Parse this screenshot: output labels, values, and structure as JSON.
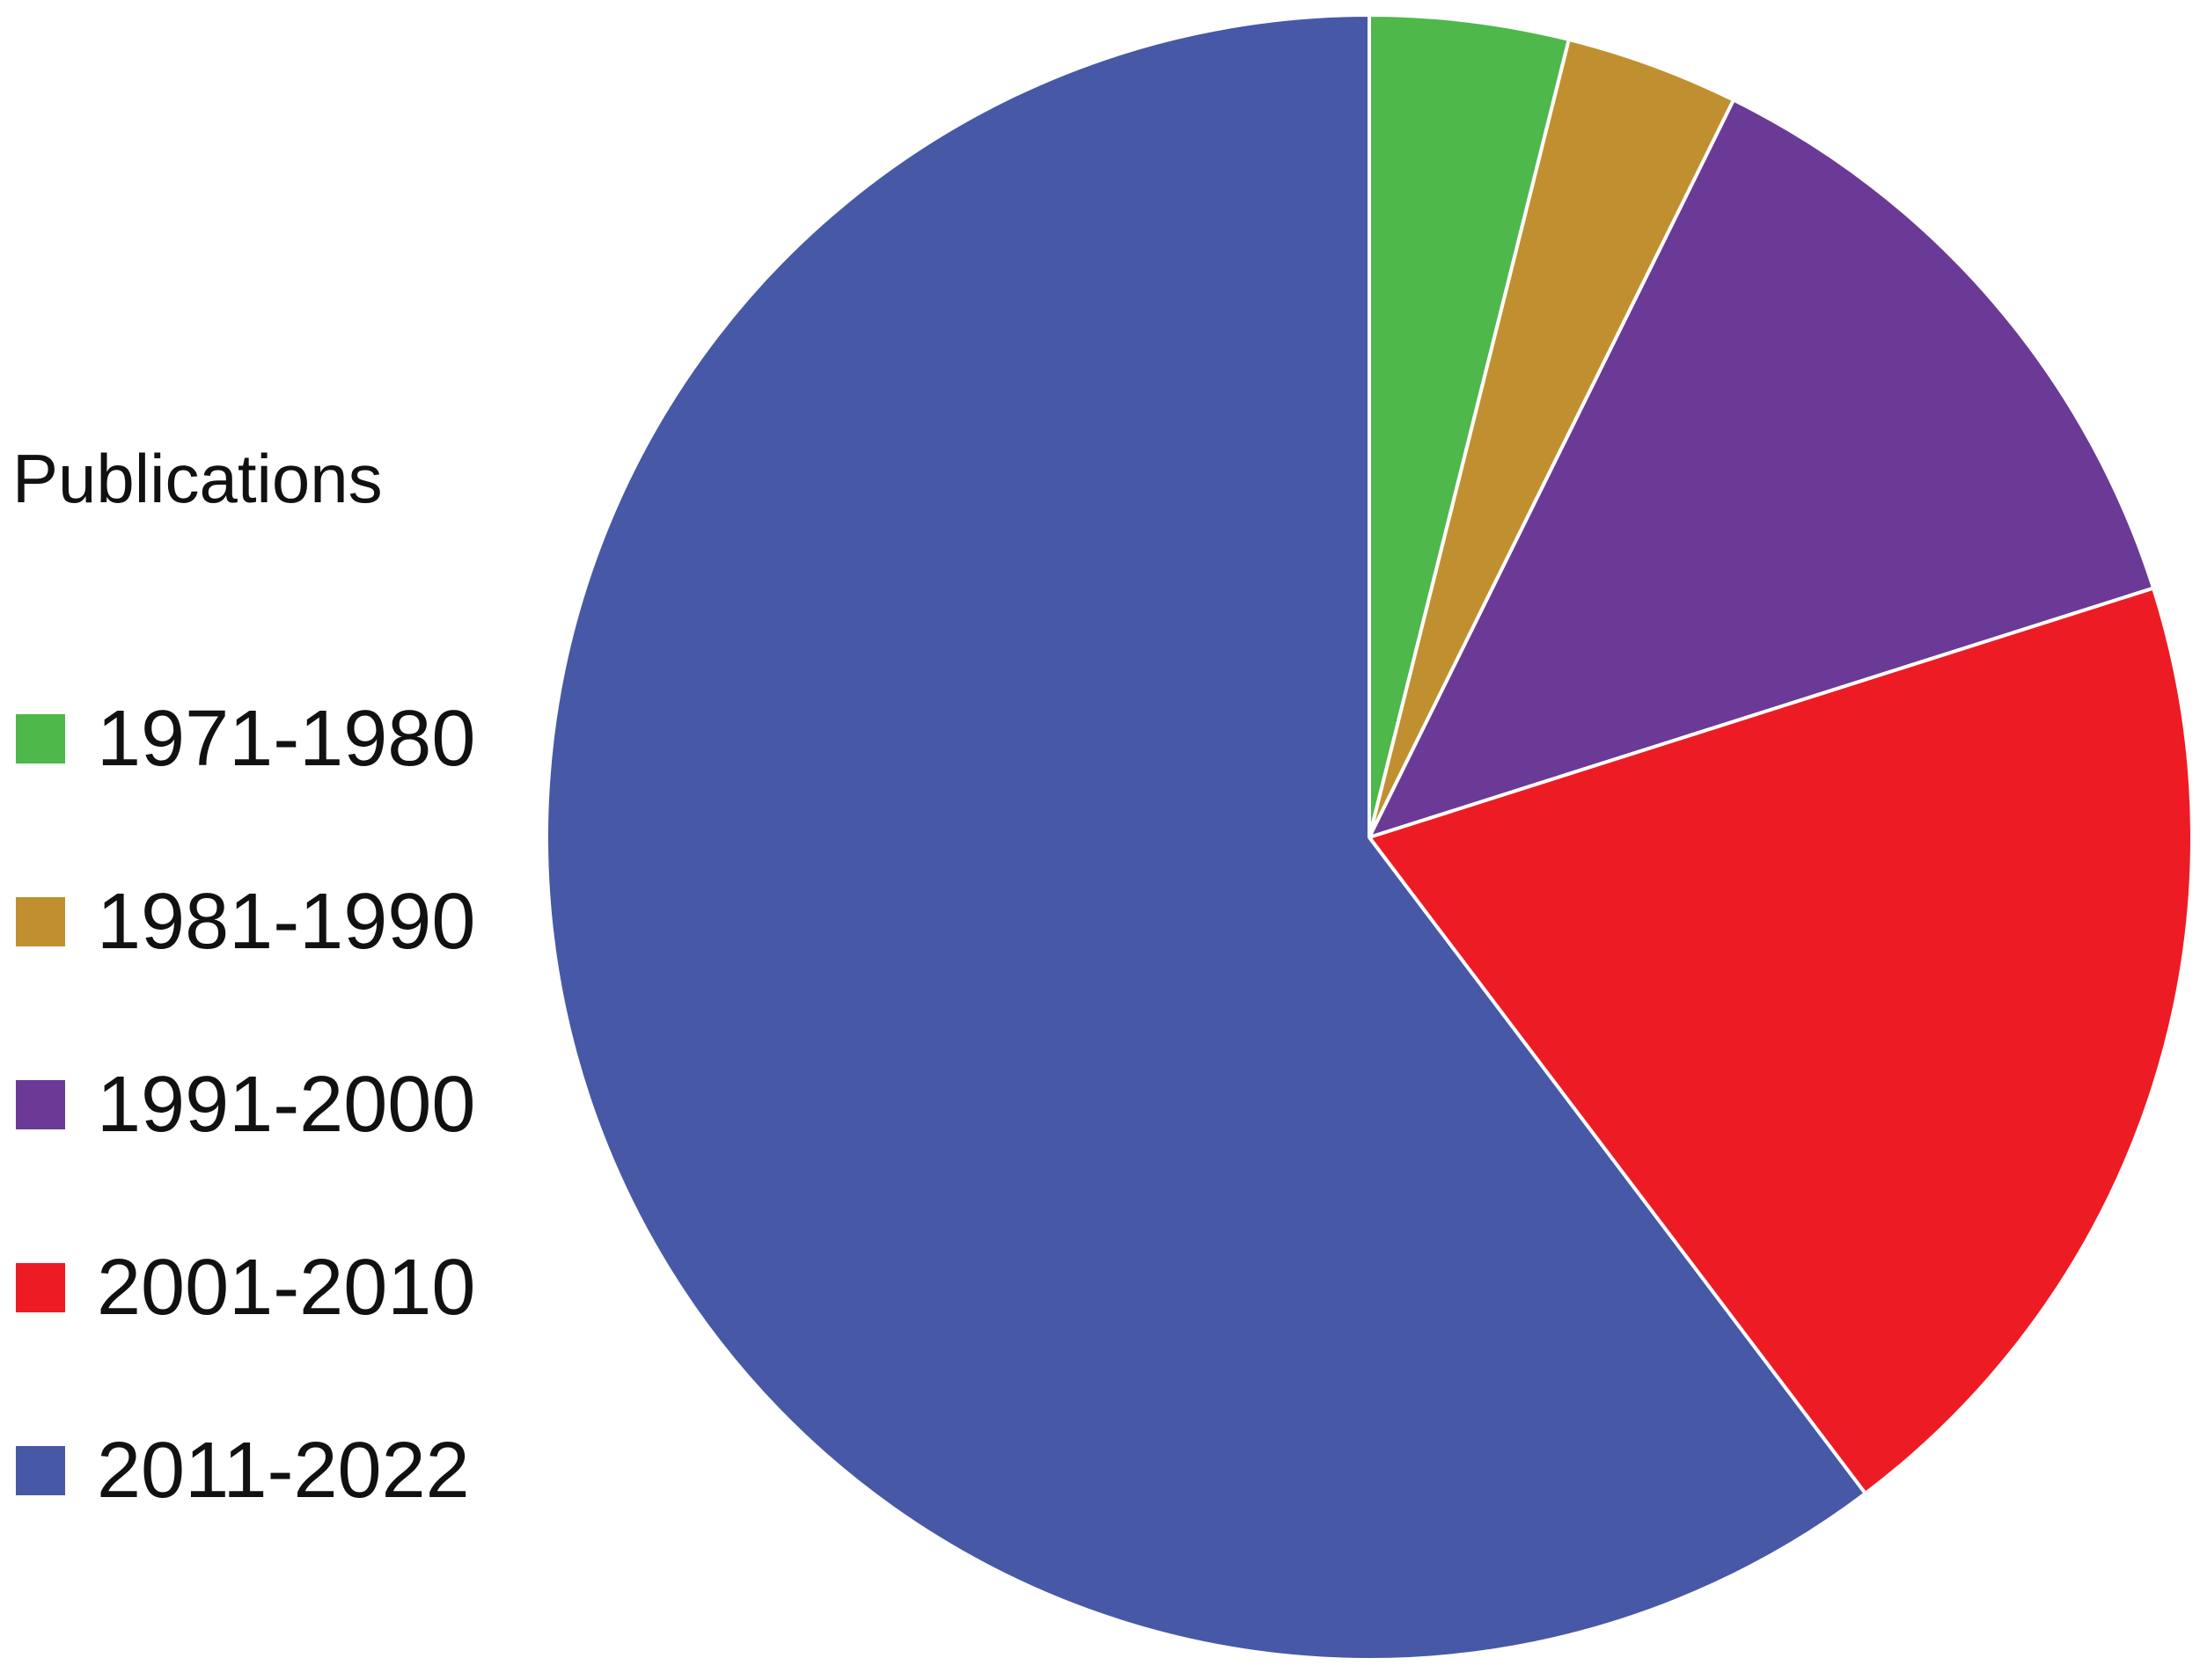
{
  "chart_data": {
    "type": "pie",
    "legend_title": "Publications",
    "legend_position": "left",
    "start_angle_deg": 0,
    "direction": "clockwise",
    "slices": [
      {
        "label": "1971-1980",
        "value": 3.9,
        "color": "#4eb84b"
      },
      {
        "label": "1981-1990",
        "value": 3.4,
        "color": "#c09030"
      },
      {
        "label": "1991-2000",
        "value": 12.8,
        "color": "#6b3a96"
      },
      {
        "label": "2001-2010",
        "value": 19.6,
        "color": "#ed1c24"
      },
      {
        "label": "2011-2022",
        "value": 60.3,
        "color": "#4758a7"
      }
    ]
  }
}
